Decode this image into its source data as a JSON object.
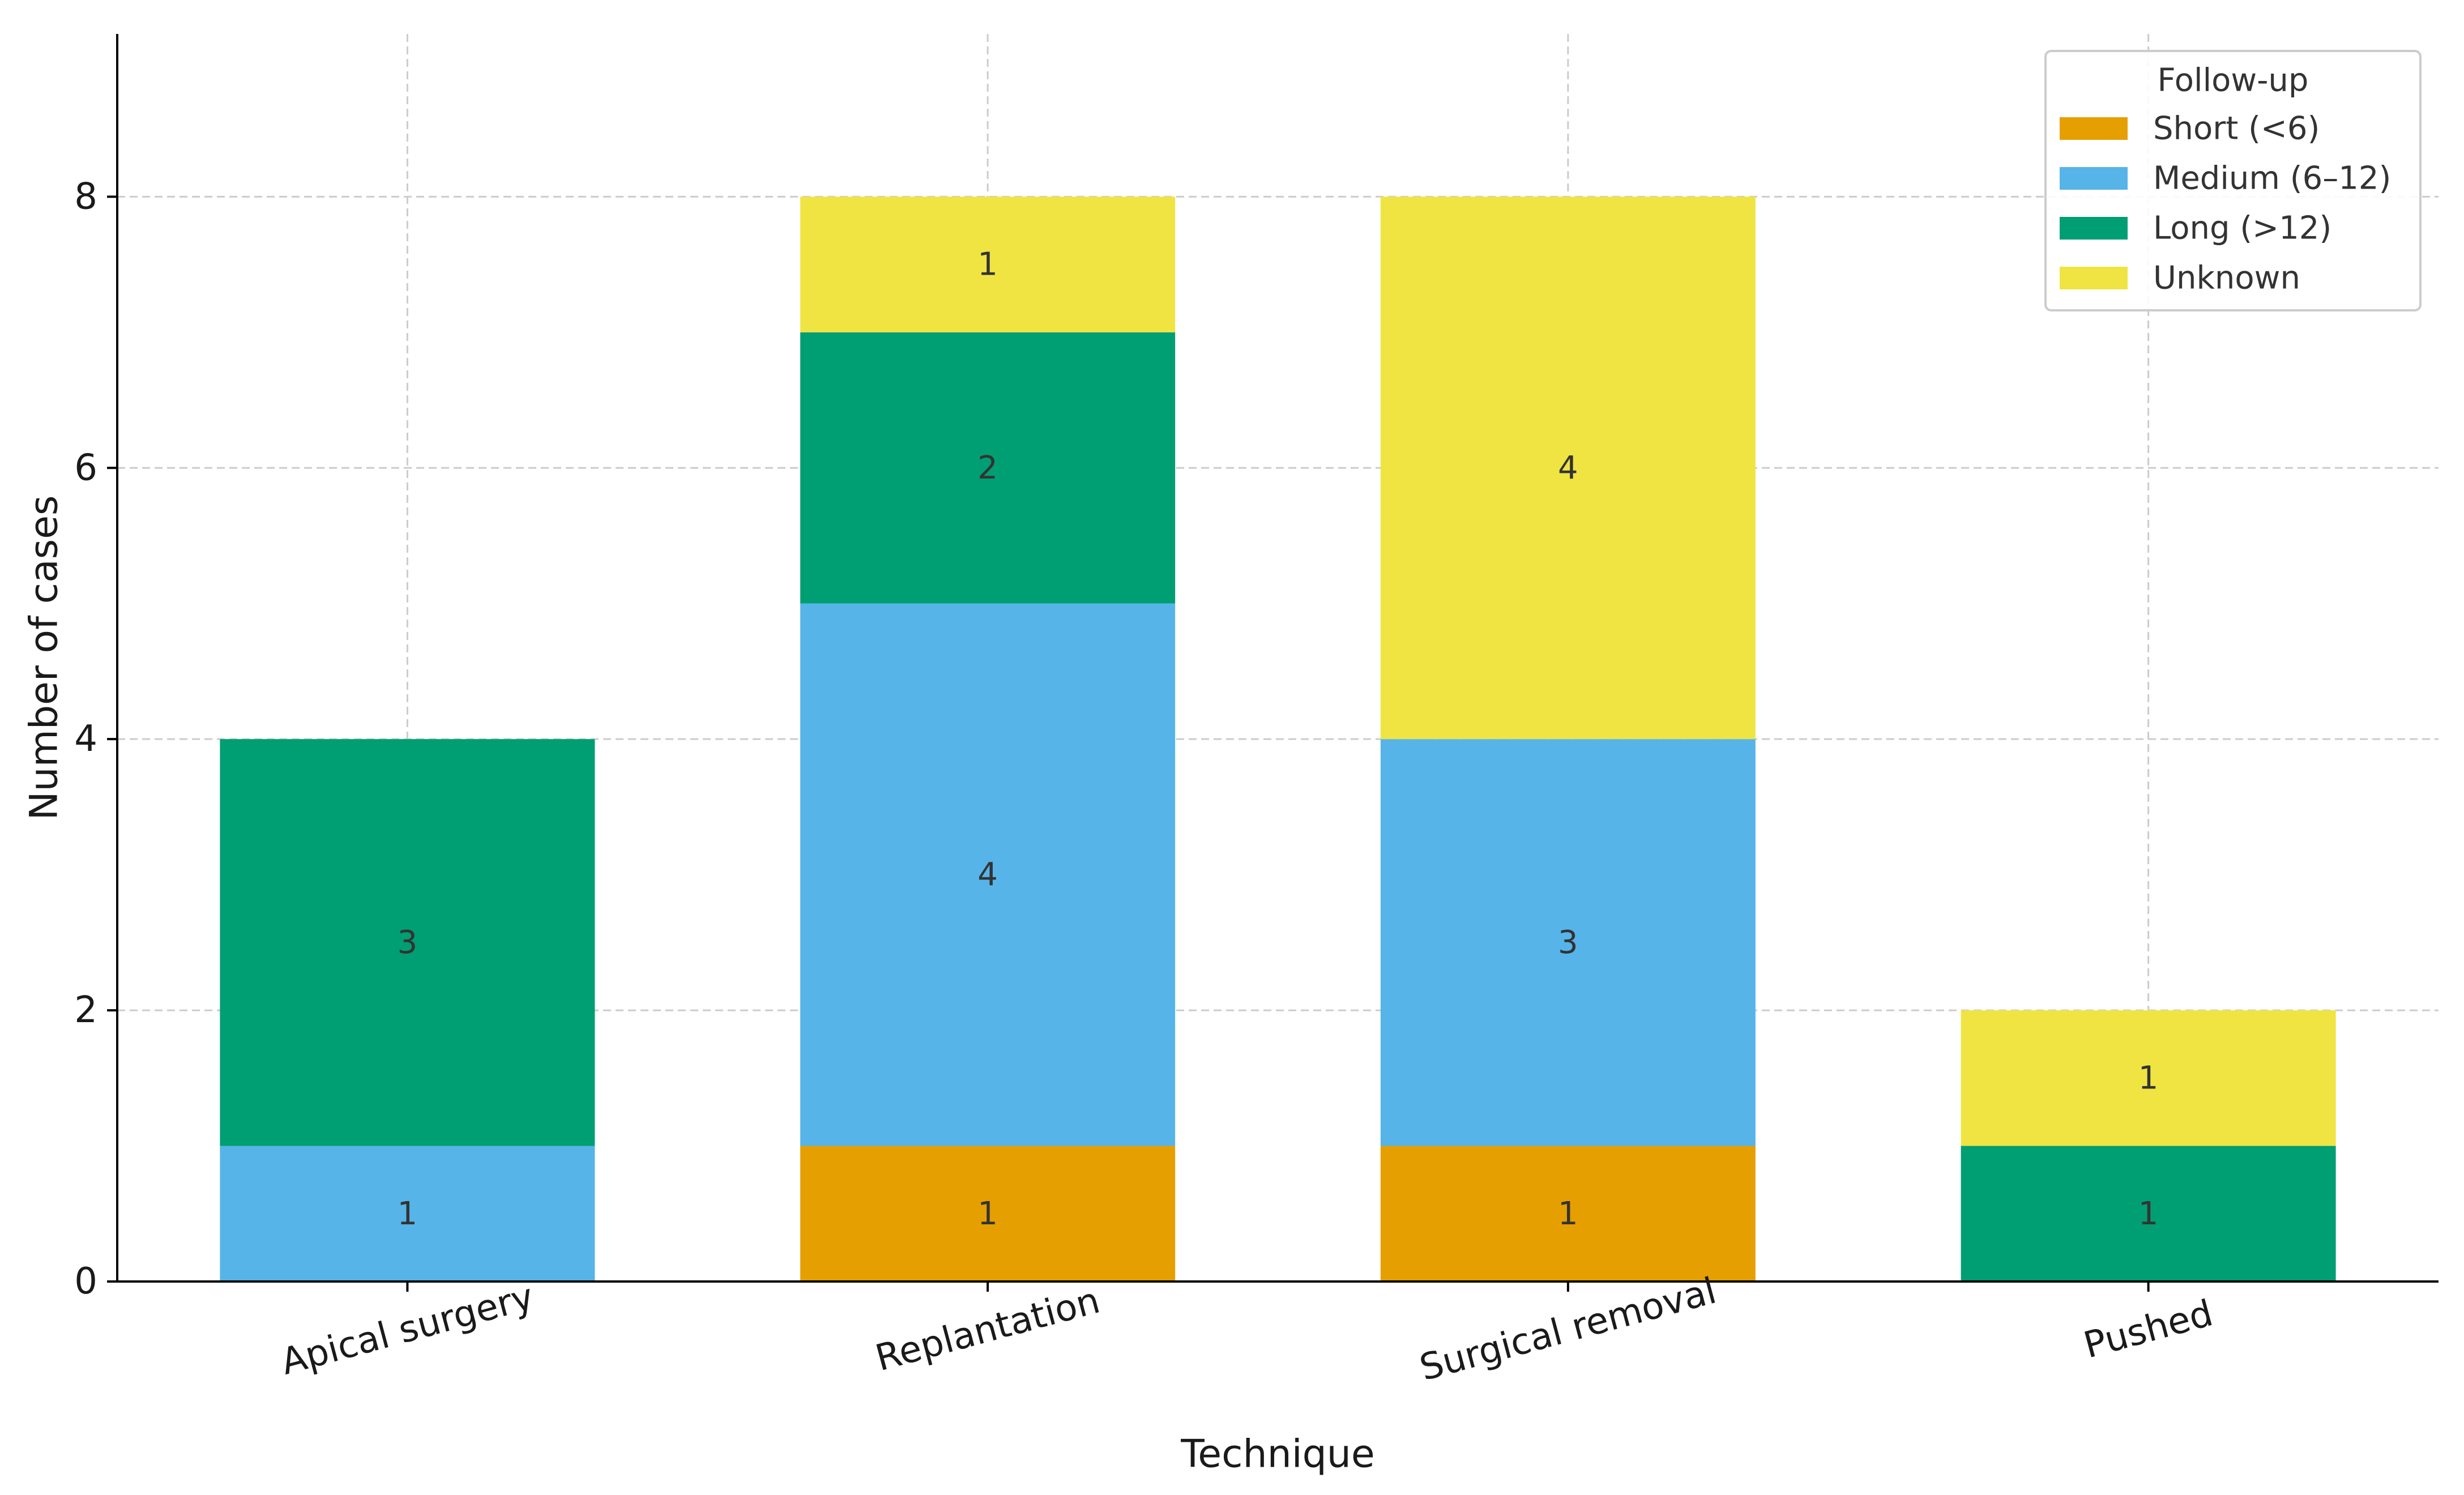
{
  "chart_data": {
    "type": "bar",
    "stacked": true,
    "title": "",
    "xlabel": "Technique",
    "ylabel": "Number of cases",
    "ylim": [
      0,
      9.2
    ],
    "yticks": [
      0,
      2,
      4,
      6,
      8
    ],
    "grid": true,
    "categories": [
      "Apical surgery",
      "Replantation",
      "Surgical removal",
      "Pushed"
    ],
    "series": [
      {
        "name": "Short (<6)",
        "color": "#E69F00",
        "values": [
          0,
          1,
          1,
          0
        ]
      },
      {
        "name": "Medium (6–12)",
        "color": "#56B4E9",
        "values": [
          1,
          4,
          3,
          0
        ]
      },
      {
        "name": "Long (>12)",
        "color": "#009E73",
        "values": [
          3,
          2,
          0,
          1
        ]
      },
      {
        "name": "Unknown",
        "color": "#F0E442",
        "values": [
          0,
          1,
          4,
          1
        ]
      }
    ],
    "legend": {
      "title": "Follow-up",
      "position": "top-right"
    }
  }
}
